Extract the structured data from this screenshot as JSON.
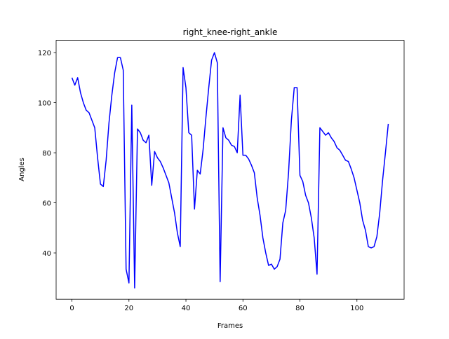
{
  "chart_data": {
    "type": "line",
    "title": "right_knee-right_ankle",
    "x_label": "Frames",
    "y_label": "Angles",
    "x": [
      0,
      1,
      2,
      3,
      4,
      5,
      6,
      7,
      8,
      9,
      10,
      11,
      12,
      13,
      14,
      15,
      16,
      17,
      18,
      19,
      20,
      21,
      22,
      23,
      24,
      25,
      26,
      27,
      28,
      29,
      30,
      31,
      32,
      33,
      34,
      35,
      36,
      37,
      38,
      39,
      40,
      41,
      42,
      43,
      44,
      45,
      46,
      47,
      48,
      49,
      50,
      51,
      52,
      53,
      54,
      55,
      56,
      57,
      58,
      59,
      60,
      61,
      62,
      63,
      64,
      65,
      66,
      67,
      68,
      69,
      70,
      71,
      72,
      73,
      74,
      75,
      76,
      77,
      78,
      79,
      80,
      81,
      82,
      83,
      84,
      85,
      86,
      87,
      88,
      89,
      90,
      91,
      92,
      93,
      94,
      95,
      96,
      97,
      98,
      99,
      100,
      101,
      102,
      103,
      104,
      105,
      106,
      107,
      108,
      109,
      110,
      111
    ],
    "series": [
      {
        "name": "right_knee-right_ankle",
        "color": "#0000ff",
        "values": [
          110,
          107,
          110,
          104,
          100,
          97,
          96,
          93,
          90,
          78,
          67.5,
          66.5,
          77,
          92,
          103,
          112,
          118,
          118,
          113,
          33.5,
          28,
          99,
          26,
          89.5,
          88,
          85,
          84,
          87,
          67,
          80.5,
          78,
          76.5,
          74,
          71,
          68,
          62,
          56,
          48,
          42.5,
          114,
          106,
          88,
          87,
          57.5,
          73,
          71.5,
          81,
          94,
          106,
          117,
          120,
          116,
          28.5,
          90,
          86,
          85,
          83,
          82.5,
          80,
          103,
          79,
          79,
          77.5,
          75,
          72,
          62,
          55,
          46,
          40,
          35,
          35.5,
          33.5,
          34.5,
          37.5,
          52,
          57,
          72,
          93,
          106,
          106,
          71,
          68.5,
          63,
          60,
          54,
          46,
          31.5,
          90,
          88.5,
          87,
          88,
          86,
          84.5,
          82,
          81,
          79,
          77,
          76.5,
          73.5,
          70,
          65,
          60,
          53,
          49,
          42.5,
          42,
          42.5,
          46.5,
          56,
          69,
          80,
          91.5
        ]
      }
    ],
    "xlim": [
      -5.55,
      116.55
    ],
    "ylim": [
      21.5,
      124.9
    ],
    "xticks": [
      0,
      20,
      40,
      60,
      80,
      100
    ],
    "yticks": [
      40,
      60,
      80,
      100,
      120
    ]
  }
}
